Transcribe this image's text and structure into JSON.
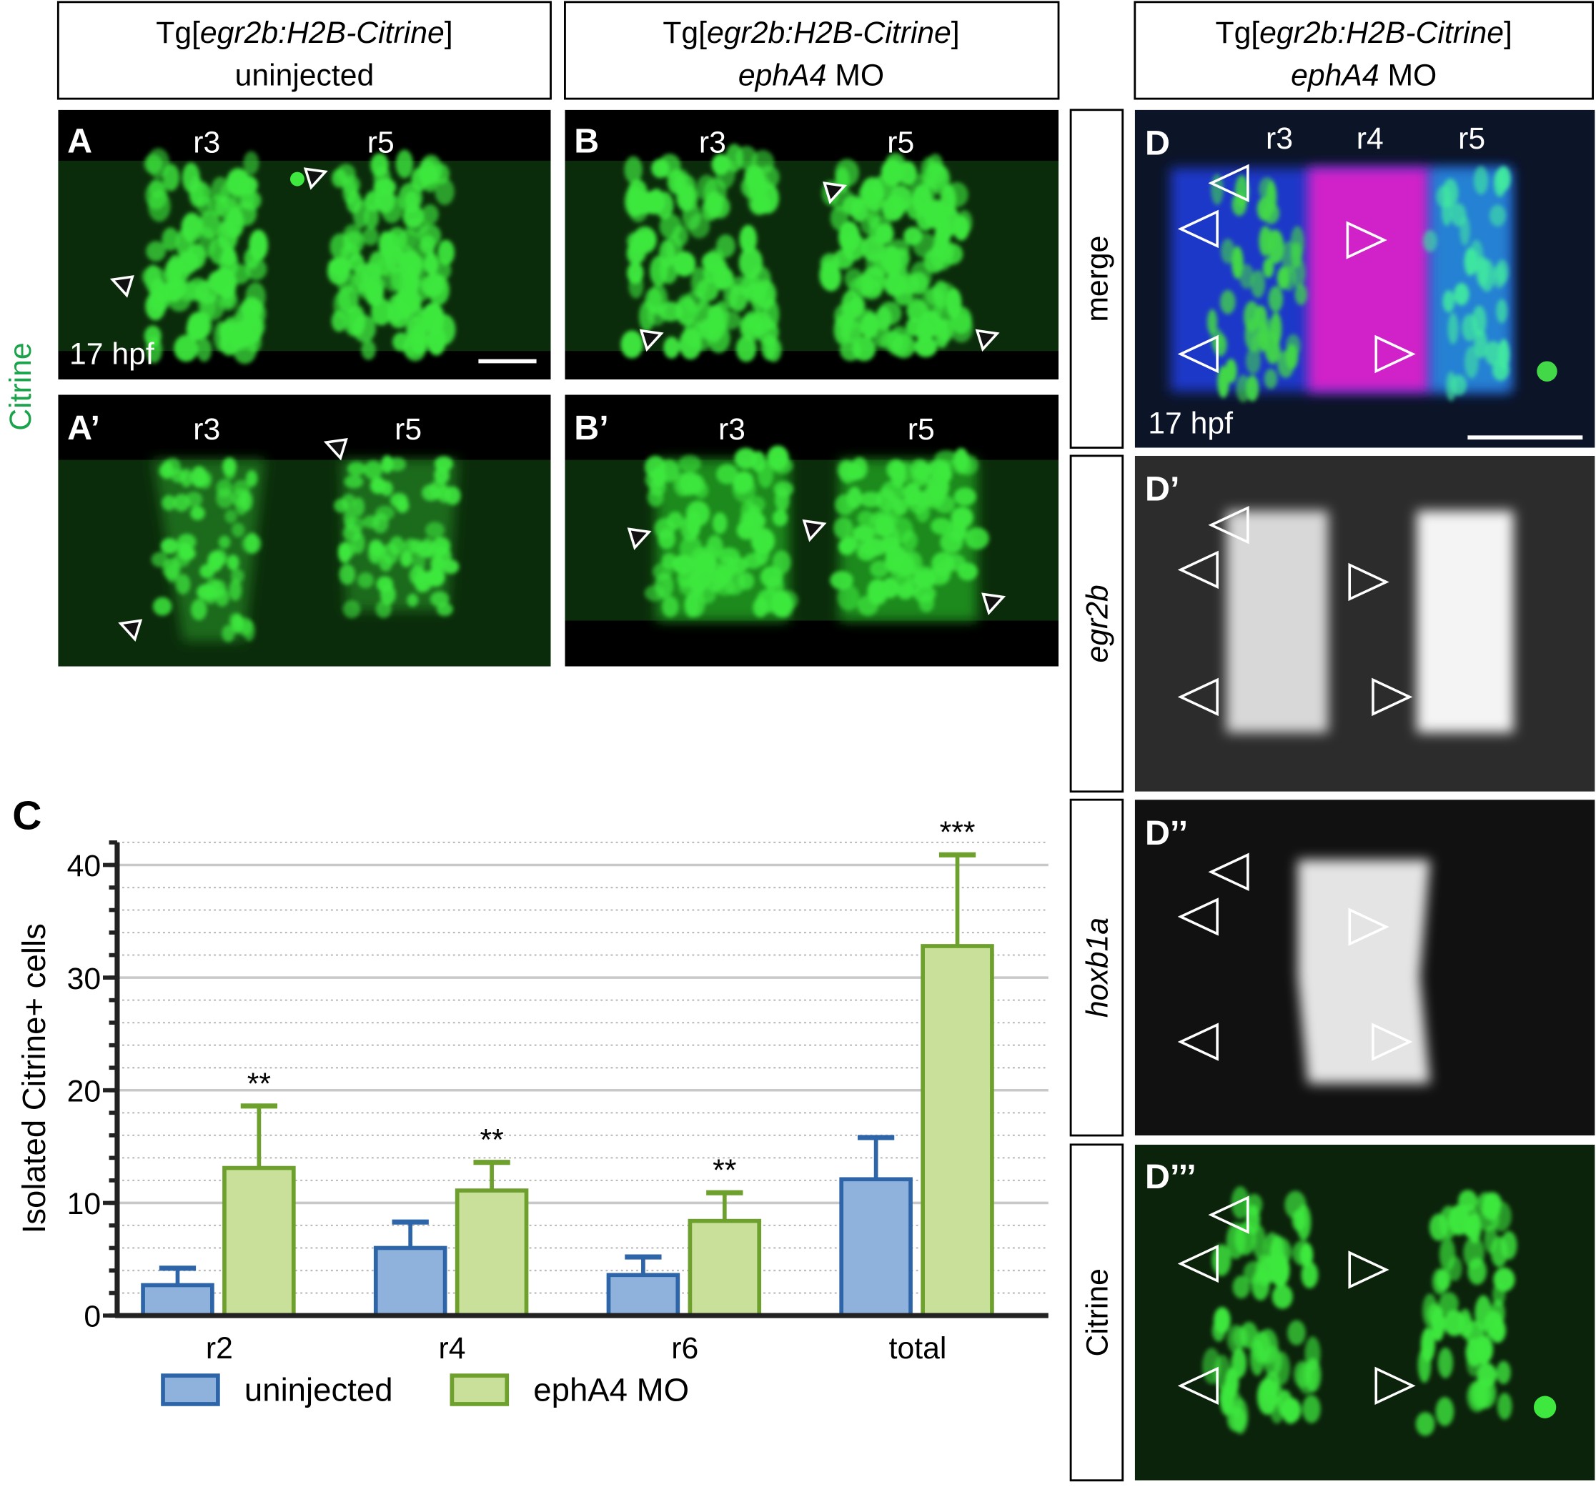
{
  "headers": [
    [
      "Tg[",
      "egr2b:H2B-Citrine",
      "]",
      "uninjected"
    ],
    [
      "Tg[",
      "egr2b:H2B-Citrine",
      "]",
      "ephA4",
      " MO"
    ],
    [
      "Tg[",
      "egr2b:H2B-Citrine",
      "]",
      "ephA4",
      " MO"
    ]
  ],
  "row_label": "Citrine",
  "panels": [
    {
      "label": "A",
      "regions": [
        "r3",
        "r5"
      ],
      "stage": "17 hpf"
    },
    {
      "label": "B",
      "regions": [
        "r3",
        "r5"
      ]
    },
    {
      "label": "A’",
      "regions": [
        "r3",
        "r5"
      ]
    },
    {
      "label": "B’",
      "regions": [
        "r3",
        "r5"
      ]
    },
    {
      "label": "D",
      "regions": [
        "r3",
        "r4",
        "r5"
      ],
      "stage": "17 hpf",
      "channel": "merge"
    },
    {
      "label": "D’",
      "channel": "egr2b"
    },
    {
      "label": "D’’",
      "channel": "hoxb1a"
    },
    {
      "label": "D’’’",
      "channel": "Citrine"
    }
  ],
  "chart_data": {
    "type": "bar",
    "panel_label": "C",
    "ylabel": "Isolated Citrine+ cells",
    "categories": [
      "r2",
      "r4",
      "r6",
      "total"
    ],
    "series": [
      {
        "name": "uninjected",
        "color": "#8fb2dd",
        "edgecolor": "#2d65a8",
        "values": [
          2.7,
          6.0,
          3.6,
          12.1
        ],
        "errors": [
          1.5,
          2.3,
          1.6,
          3.7
        ]
      },
      {
        "name": "ephA4 MO",
        "color": "#c8e09a",
        "edgecolor": "#6ea02e",
        "values": [
          13.1,
          11.1,
          8.4,
          32.8
        ],
        "errors": [
          5.5,
          2.5,
          2.5,
          8.1
        ]
      }
    ],
    "annotations": [
      "**",
      "**",
      "**",
      "***"
    ],
    "ylim": [
      0,
      42
    ],
    "yticks": [
      0,
      10,
      20,
      30,
      40
    ],
    "grid": true,
    "minor_tick_step": 2
  }
}
